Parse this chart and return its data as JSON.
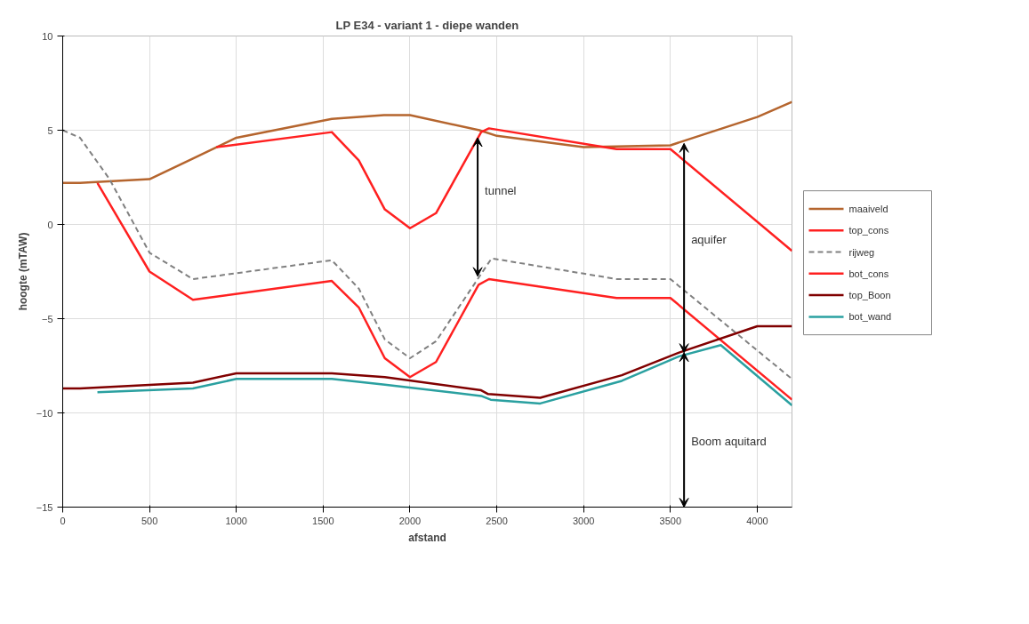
{
  "chart_data": {
    "type": "line",
    "title": "LP E34 - variant 1 - diepe wanden",
    "xlabel": "afstand",
    "ylabel": "hoogte (mTAW)",
    "xlim": [
      0,
      4200
    ],
    "xticks": [
      0,
      500,
      1000,
      1500,
      2000,
      2500,
      3000,
      3500,
      4000
    ],
    "ylim": [
      -15,
      10
    ],
    "yticks": [
      -15,
      -10,
      -5,
      0,
      5,
      10
    ],
    "grid": true,
    "legend": "right",
    "series": [
      {
        "name": "maaiveld",
        "color": "#b5652e",
        "x": [
          0,
          100,
          500,
          750,
          1000,
          1550,
          1850,
          2000,
          2400,
          2500,
          3000,
          3500,
          4000,
          4200
        ],
        "values": [
          2.2,
          2.2,
          2.4,
          3.5,
          4.6,
          5.6,
          5.8,
          5.8,
          5.0,
          4.7,
          4.1,
          4.2,
          5.7,
          6.5
        ]
      },
      {
        "name": "top_cons",
        "color": "#ff2020",
        "x": [
          885,
          1550,
          1705,
          1855,
          2000,
          2150,
          2410,
          2455,
          3190,
          3500,
          4200
        ],
        "values": [
          4.1,
          4.9,
          3.4,
          0.8,
          -0.2,
          0.6,
          4.9,
          5.1,
          4.0,
          4.0,
          -1.4
        ]
      },
      {
        "name": "rijweg",
        "color": "#808080",
        "line_style": "dashed",
        "x": [
          0,
          100,
          270,
          500,
          750,
          1550,
          1705,
          1855,
          2000,
          2150,
          2470,
          3190,
          3500,
          4200
        ],
        "values": [
          5.0,
          4.6,
          2.4,
          -1.5,
          -2.9,
          -1.9,
          -3.4,
          -6.1,
          -7.1,
          -6.2,
          -1.8,
          -2.9,
          -2.9,
          -8.2
        ]
      },
      {
        "name": "bot_cons",
        "color": "#ff2020",
        "x": [
          200,
          500,
          750,
          1550,
          1705,
          1855,
          2000,
          2150,
          2395,
          2455,
          3190,
          3500,
          4200
        ],
        "values": [
          2.2,
          -2.5,
          -4.0,
          -3.0,
          -4.4,
          -7.1,
          -8.1,
          -7.3,
          -3.2,
          -2.9,
          -3.9,
          -3.9,
          -9.3
        ]
      },
      {
        "name": "top_Boon",
        "color": "#800000",
        "x": [
          0,
          100,
          750,
          1000,
          1550,
          1855,
          2410,
          2450,
          2750,
          3220,
          3550,
          4000,
          4200
        ],
        "values": [
          -8.7,
          -8.7,
          -8.4,
          -7.9,
          -7.9,
          -8.1,
          -8.8,
          -9.0,
          -9.2,
          -8.0,
          -6.8,
          -5.4,
          -5.4
        ]
      },
      {
        "name": "bot_wand",
        "color": "#2aa0a0",
        "x": [
          200,
          750,
          1000,
          1550,
          1855,
          2410,
          2465,
          2750,
          3220,
          3550,
          3790,
          4200
        ],
        "values": [
          -8.9,
          -8.7,
          -8.2,
          -8.2,
          -8.5,
          -9.1,
          -9.3,
          -9.5,
          -8.3,
          -7.0,
          -6.4,
          -9.6
        ]
      }
    ],
    "annotations": [
      "tunnel",
      "aquifer",
      "Boom aquitard"
    ]
  }
}
